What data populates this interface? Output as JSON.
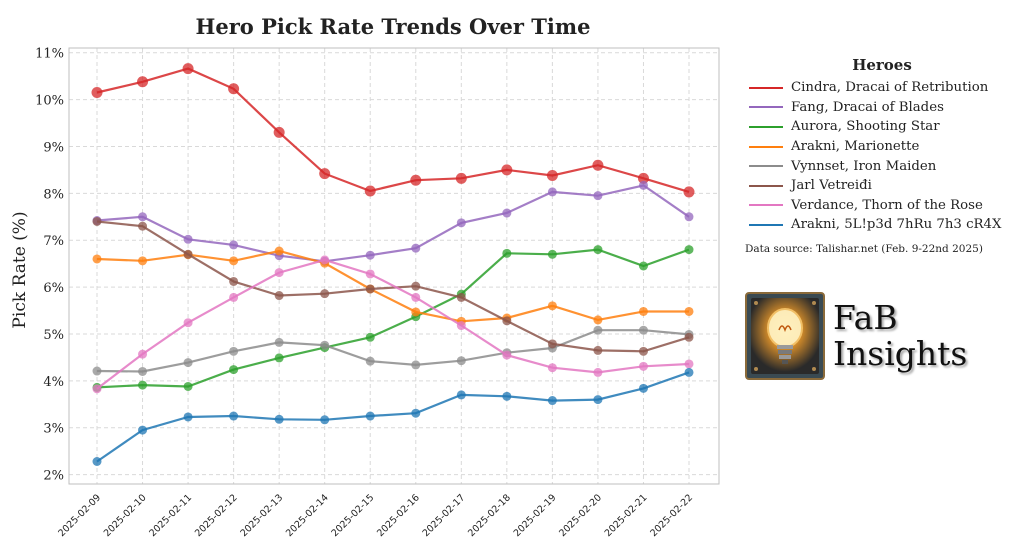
{
  "chart_data": {
    "type": "line",
    "title": "Hero Pick Rate Trends Over Time",
    "xlabel": "",
    "ylabel": "Pick Rate (%)",
    "ylim": [
      1.8,
      11.1
    ],
    "yticks": [
      2,
      3,
      4,
      5,
      6,
      7,
      8,
      9,
      10,
      11
    ],
    "ytick_labels": [
      "2%",
      "3%",
      "4%",
      "5%",
      "6%",
      "7%",
      "8%",
      "9%",
      "10%",
      "11%"
    ],
    "grid": true,
    "legend_position": "right",
    "categories": [
      "2025-02-09",
      "2025-02-10",
      "2025-02-11",
      "2025-02-12",
      "2025-02-13",
      "2025-02-14",
      "2025-02-15",
      "2025-02-16",
      "2025-02-17",
      "2025-02-18",
      "2025-02-19",
      "2025-02-20",
      "2025-02-21",
      "2025-02-22"
    ],
    "series": [
      {
        "name": "Cindra, Dracai of Retribution",
        "color": "#d62728",
        "values": [
          10.15,
          10.38,
          10.66,
          10.23,
          9.3,
          8.42,
          8.05,
          8.28,
          8.32,
          8.5,
          8.38,
          8.6,
          8.32,
          8.03
        ]
      },
      {
        "name": "Fang, Dracai of Blades",
        "color": "#9467bd",
        "values": [
          7.42,
          7.5,
          7.02,
          6.9,
          6.67,
          6.55,
          6.68,
          6.83,
          7.37,
          7.58,
          8.03,
          7.95,
          8.17,
          7.5
        ]
      },
      {
        "name": "Aurora, Shooting Star",
        "color": "#2ca02c",
        "values": [
          3.86,
          3.91,
          3.88,
          4.24,
          4.49,
          4.71,
          4.93,
          5.37,
          5.85,
          6.72,
          6.7,
          6.8,
          6.45,
          6.8
        ]
      },
      {
        "name": "Arakni, Marionette",
        "color": "#ff7f0e",
        "values": [
          6.6,
          6.56,
          6.69,
          6.56,
          6.77,
          6.51,
          5.96,
          5.47,
          5.27,
          5.34,
          5.6,
          5.3,
          5.48,
          5.48
        ]
      },
      {
        "name": "Vynnset, Iron Maiden",
        "color": "#8c8c8c",
        "values": [
          4.21,
          4.2,
          4.39,
          4.63,
          4.82,
          4.76,
          4.42,
          4.34,
          4.43,
          4.6,
          4.7,
          5.08,
          5.08,
          4.99
        ]
      },
      {
        "name": "Jarl Vetreiđi",
        "color": "#8c564b",
        "values": [
          7.4,
          7.3,
          6.7,
          6.12,
          5.82,
          5.86,
          5.96,
          6.02,
          5.78,
          5.28,
          4.79,
          4.65,
          4.63,
          4.93
        ]
      },
      {
        "name": "Verdance, Thorn of the Rose",
        "color": "#e377c2",
        "values": [
          3.83,
          4.57,
          5.24,
          5.78,
          6.31,
          6.58,
          6.28,
          5.78,
          5.18,
          4.55,
          4.28,
          4.18,
          4.31,
          4.36
        ]
      },
      {
        "name": "Arakni, 5L!p3d 7hRu 7h3 cR4X",
        "color": "#1f77b4",
        "values": [
          2.28,
          2.95,
          3.23,
          3.25,
          3.18,
          3.17,
          3.25,
          3.31,
          3.7,
          3.67,
          3.58,
          3.6,
          3.84,
          4.18
        ]
      }
    ]
  },
  "legend": {
    "title": "Heroes"
  },
  "source_note": "Data source: Talishar.net (Feb. 9-22nd 2025)",
  "brand": {
    "line1": "FaB",
    "line2": "Insights",
    "logo_icon": "lightbulb-icon"
  }
}
